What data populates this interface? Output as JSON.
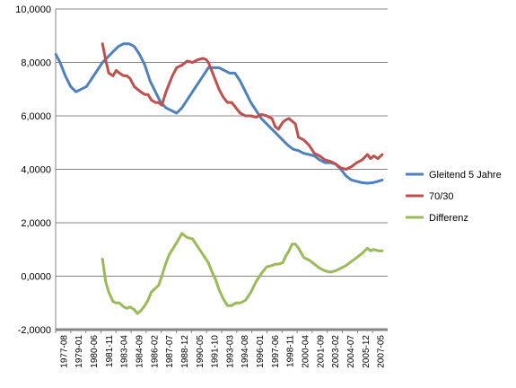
{
  "chart_data": {
    "type": "line",
    "ylim": [
      -2,
      10
    ],
    "yticks": [
      "-2,0000",
      "0,0000",
      "2,0000",
      "4,0000",
      "6,0000",
      "8,0000",
      "10,0000"
    ],
    "ytick_values": [
      -2,
      0,
      2,
      4,
      6,
      8,
      10
    ],
    "x_start": 1977.583,
    "x_end": 2008.917,
    "xtick_labels": [
      "1977-08",
      "1979-01",
      "1980-06",
      "1981-11",
      "1983-04",
      "1984-09",
      "1986-02",
      "1987-07",
      "1988-12",
      "1990-05",
      "1991-10",
      "1993-03",
      "1994-08",
      "1996-01",
      "1997-06",
      "1998-11",
      "2000-04",
      "2001-09",
      "2003-02",
      "2004-07",
      "2005-12",
      "2007-05"
    ],
    "grid": true,
    "legend_position": "right",
    "series": [
      {
        "name": "Gleitend 5 Jahre",
        "color": "#4f81bd",
        "points": [
          [
            1977.6,
            8.3
          ],
          [
            1978.0,
            8.0
          ],
          [
            1978.5,
            7.5
          ],
          [
            1979.0,
            7.1
          ],
          [
            1979.5,
            6.9
          ],
          [
            1980.0,
            7.0
          ],
          [
            1980.5,
            7.1
          ],
          [
            1981.0,
            7.4
          ],
          [
            1981.5,
            7.7
          ],
          [
            1982.0,
            8.0
          ],
          [
            1982.5,
            8.2
          ],
          [
            1983.0,
            8.4
          ],
          [
            1983.5,
            8.6
          ],
          [
            1984.0,
            8.7
          ],
          [
            1984.5,
            8.7
          ],
          [
            1985.0,
            8.6
          ],
          [
            1985.5,
            8.3
          ],
          [
            1986.0,
            7.9
          ],
          [
            1986.5,
            7.3
          ],
          [
            1987.0,
            6.9
          ],
          [
            1987.5,
            6.5
          ],
          [
            1988.0,
            6.3
          ],
          [
            1988.5,
            6.2
          ],
          [
            1989.0,
            6.1
          ],
          [
            1989.5,
            6.3
          ],
          [
            1990.0,
            6.6
          ],
          [
            1990.5,
            6.9
          ],
          [
            1991.0,
            7.2
          ],
          [
            1991.5,
            7.5
          ],
          [
            1992.0,
            7.8
          ],
          [
            1992.5,
            7.8
          ],
          [
            1993.0,
            7.8
          ],
          [
            1993.5,
            7.7
          ],
          [
            1994.0,
            7.6
          ],
          [
            1994.5,
            7.6
          ],
          [
            1995.0,
            7.3
          ],
          [
            1995.5,
            6.9
          ],
          [
            1996.0,
            6.5
          ],
          [
            1996.5,
            6.2
          ],
          [
            1997.0,
            5.9
          ],
          [
            1997.5,
            5.7
          ],
          [
            1998.0,
            5.5
          ],
          [
            1998.5,
            5.3
          ],
          [
            1999.0,
            5.1
          ],
          [
            1999.5,
            4.9
          ],
          [
            2000.0,
            4.75
          ],
          [
            2000.5,
            4.7
          ],
          [
            2001.0,
            4.6
          ],
          [
            2001.5,
            4.55
          ],
          [
            2002.0,
            4.5
          ],
          [
            2002.5,
            4.35
          ],
          [
            2003.0,
            4.25
          ],
          [
            2003.5,
            4.25
          ],
          [
            2004.0,
            4.2
          ],
          [
            2004.5,
            4.0
          ],
          [
            2005.0,
            3.75
          ],
          [
            2005.5,
            3.6
          ],
          [
            2006.0,
            3.55
          ],
          [
            2006.5,
            3.5
          ],
          [
            2007.0,
            3.48
          ],
          [
            2007.5,
            3.5
          ],
          [
            2008.0,
            3.55
          ],
          [
            2008.4,
            3.6
          ]
        ]
      },
      {
        "name": "70/30",
        "color": "#c0504d",
        "points": [
          [
            1982.0,
            8.7
          ],
          [
            1982.3,
            8.1
          ],
          [
            1982.6,
            7.6
          ],
          [
            1983.0,
            7.5
          ],
          [
            1983.3,
            7.7
          ],
          [
            1983.6,
            7.6
          ],
          [
            1984.0,
            7.5
          ],
          [
            1984.3,
            7.5
          ],
          [
            1984.6,
            7.4
          ],
          [
            1985.0,
            7.1
          ],
          [
            1985.3,
            7.0
          ],
          [
            1985.6,
            6.9
          ],
          [
            1986.0,
            6.8
          ],
          [
            1986.3,
            6.8
          ],
          [
            1986.6,
            6.6
          ],
          [
            1987.0,
            6.5
          ],
          [
            1987.3,
            6.5
          ],
          [
            1987.6,
            6.4
          ],
          [
            1988.0,
            6.9
          ],
          [
            1988.3,
            7.2
          ],
          [
            1988.6,
            7.5
          ],
          [
            1989.0,
            7.8
          ],
          [
            1989.5,
            7.9
          ],
          [
            1990.0,
            8.05
          ],
          [
            1990.5,
            8.0
          ],
          [
            1991.0,
            8.1
          ],
          [
            1991.5,
            8.15
          ],
          [
            1991.8,
            8.1
          ],
          [
            1992.0,
            8.0
          ],
          [
            1992.3,
            7.7
          ],
          [
            1992.7,
            7.3
          ],
          [
            1993.0,
            7.0
          ],
          [
            1993.4,
            6.7
          ],
          [
            1993.8,
            6.5
          ],
          [
            1994.2,
            6.5
          ],
          [
            1994.6,
            6.3
          ],
          [
            1995.0,
            6.1
          ],
          [
            1995.5,
            6.0
          ],
          [
            1996.0,
            6.0
          ],
          [
            1996.5,
            5.95
          ],
          [
            1997.0,
            6.05
          ],
          [
            1997.5,
            6.0
          ],
          [
            1998.0,
            5.9
          ],
          [
            1998.3,
            5.6
          ],
          [
            1998.6,
            5.5
          ],
          [
            1999.0,
            5.75
          ],
          [
            1999.3,
            5.85
          ],
          [
            1999.6,
            5.9
          ],
          [
            1999.9,
            5.8
          ],
          [
            2000.2,
            5.7
          ],
          [
            2000.5,
            5.2
          ],
          [
            2001.0,
            5.1
          ],
          [
            2001.5,
            4.9
          ],
          [
            2002.0,
            4.6
          ],
          [
            2002.5,
            4.5
          ],
          [
            2003.0,
            4.35
          ],
          [
            2003.5,
            4.3
          ],
          [
            2004.0,
            4.2
          ],
          [
            2004.5,
            4.05
          ],
          [
            2005.0,
            4.0
          ],
          [
            2005.5,
            4.1
          ],
          [
            2006.0,
            4.25
          ],
          [
            2006.5,
            4.35
          ],
          [
            2007.0,
            4.55
          ],
          [
            2007.3,
            4.4
          ],
          [
            2007.6,
            4.5
          ],
          [
            2008.0,
            4.4
          ],
          [
            2008.4,
            4.55
          ]
        ]
      },
      {
        "name": "Differenz",
        "color": "#9bbb59",
        "points": [
          [
            1982.0,
            0.65
          ],
          [
            1982.3,
            -0.2
          ],
          [
            1982.6,
            -0.6
          ],
          [
            1983.0,
            -0.95
          ],
          [
            1983.3,
            -1.0
          ],
          [
            1983.6,
            -1.0
          ],
          [
            1984.0,
            -1.15
          ],
          [
            1984.3,
            -1.2
          ],
          [
            1984.6,
            -1.15
          ],
          [
            1985.0,
            -1.25
          ],
          [
            1985.3,
            -1.4
          ],
          [
            1985.6,
            -1.3
          ],
          [
            1986.0,
            -1.1
          ],
          [
            1986.3,
            -0.9
          ],
          [
            1986.6,
            -0.6
          ],
          [
            1987.0,
            -0.45
          ],
          [
            1987.3,
            -0.35
          ],
          [
            1987.6,
            0.0
          ],
          [
            1988.0,
            0.5
          ],
          [
            1988.3,
            0.8
          ],
          [
            1988.6,
            1.0
          ],
          [
            1989.0,
            1.25
          ],
          [
            1989.5,
            1.6
          ],
          [
            1990.0,
            1.45
          ],
          [
            1990.5,
            1.4
          ],
          [
            1991.0,
            1.1
          ],
          [
            1991.5,
            0.8
          ],
          [
            1992.0,
            0.5
          ],
          [
            1992.3,
            0.2
          ],
          [
            1992.7,
            -0.15
          ],
          [
            1993.0,
            -0.5
          ],
          [
            1993.4,
            -0.85
          ],
          [
            1993.8,
            -1.1
          ],
          [
            1994.2,
            -1.1
          ],
          [
            1994.6,
            -1.0
          ],
          [
            1995.0,
            -1.0
          ],
          [
            1995.5,
            -0.9
          ],
          [
            1996.0,
            -0.6
          ],
          [
            1996.5,
            -0.2
          ],
          [
            1997.0,
            0.1
          ],
          [
            1997.5,
            0.35
          ],
          [
            1998.0,
            0.4
          ],
          [
            1998.3,
            0.45
          ],
          [
            1998.6,
            0.45
          ],
          [
            1999.0,
            0.5
          ],
          [
            1999.3,
            0.75
          ],
          [
            1999.6,
            0.95
          ],
          [
            1999.9,
            1.2
          ],
          [
            2000.2,
            1.2
          ],
          [
            2000.5,
            1.05
          ],
          [
            2001.0,
            0.7
          ],
          [
            2001.5,
            0.6
          ],
          [
            2002.0,
            0.45
          ],
          [
            2002.5,
            0.3
          ],
          [
            2003.0,
            0.2
          ],
          [
            2003.5,
            0.15
          ],
          [
            2004.0,
            0.2
          ],
          [
            2004.5,
            0.3
          ],
          [
            2005.0,
            0.4
          ],
          [
            2005.5,
            0.55
          ],
          [
            2006.0,
            0.7
          ],
          [
            2006.5,
            0.85
          ],
          [
            2007.0,
            1.05
          ],
          [
            2007.3,
            0.95
          ],
          [
            2007.6,
            1.0
          ],
          [
            2008.0,
            0.95
          ],
          [
            2008.4,
            0.95
          ]
        ]
      }
    ]
  }
}
